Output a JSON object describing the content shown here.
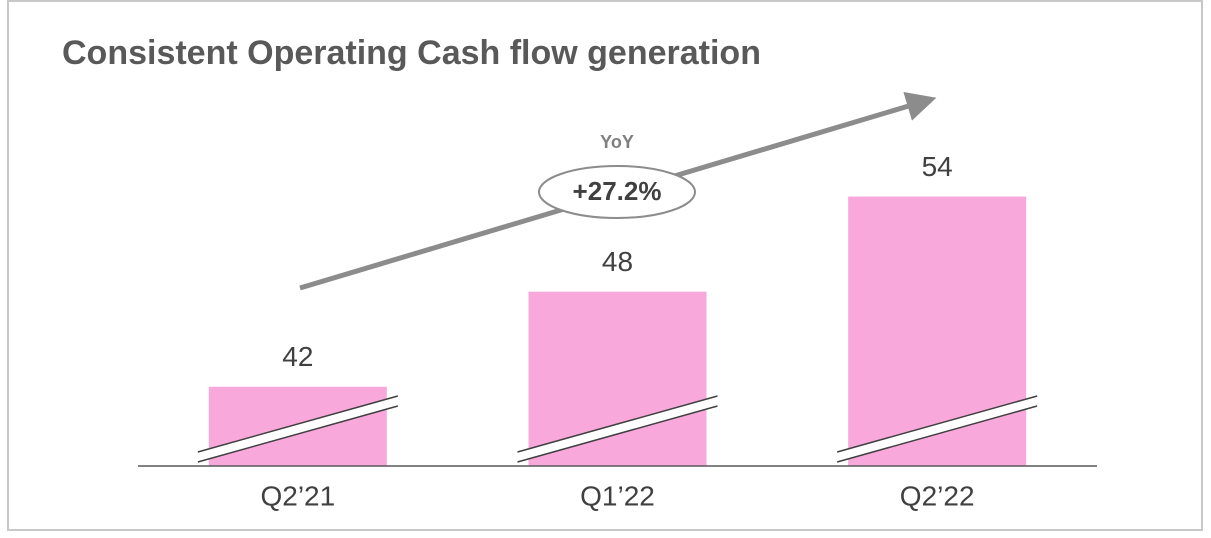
{
  "chart_data": {
    "type": "bar",
    "title": "Consistent Operating Cash flow generation",
    "annotation": {
      "label": "YoY",
      "value": "+27.2%"
    },
    "categories": [
      "Q2’21",
      "Q1’22",
      "Q2’22"
    ],
    "values": [
      42,
      48,
      54
    ],
    "color": "#f9a8dc",
    "ylim": [
      37,
      57
    ]
  }
}
